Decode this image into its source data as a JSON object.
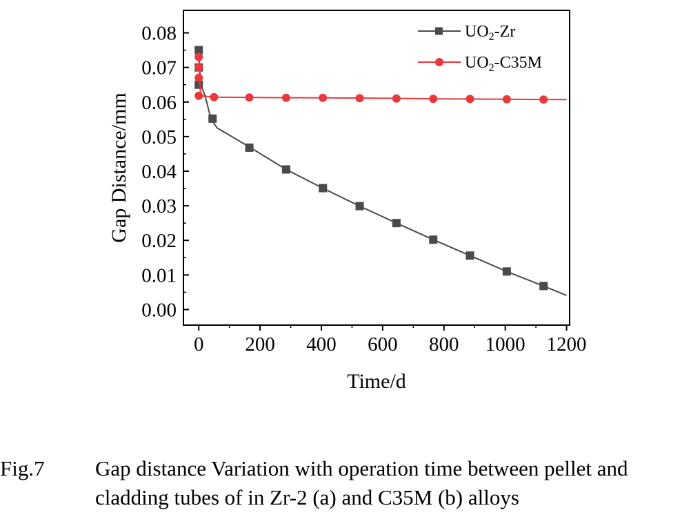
{
  "chart_data": {
    "type": "line",
    "xlabel": "Time/d",
    "ylabel": "Gap Distance/mm",
    "xlim": [
      -50,
      1210
    ],
    "ylim": [
      -0.0045,
      0.0865
    ],
    "x_ticks": [
      0,
      200,
      400,
      600,
      800,
      1000,
      1200
    ],
    "x_tick_labels": [
      "0",
      "200",
      "400",
      "600",
      "800",
      "1000",
      "1200"
    ],
    "y_ticks": [
      0,
      0.01,
      0.02,
      0.03,
      0.04,
      0.05,
      0.06,
      0.07,
      0.08
    ],
    "y_tick_labels": [
      "0.00",
      "0.01",
      "0.02",
      "0.03",
      "0.04",
      "0.05",
      "0.06",
      "0.07",
      "0.08"
    ],
    "grid": false,
    "legend_position": "top-right",
    "series": [
      {
        "name": "UO₂-Zr",
        "color": "#4a4a4a",
        "marker": "square",
        "line": [
          [
            0,
            0.075
          ],
          [
            3,
            0.07
          ],
          [
            6,
            0.065
          ],
          [
            20,
            0.062
          ],
          [
            40,
            0.055
          ],
          [
            60,
            0.0525
          ],
          [
            165,
            0.047
          ],
          [
            285,
            0.0405
          ],
          [
            405,
            0.0351
          ],
          [
            525,
            0.0299
          ],
          [
            645,
            0.025
          ],
          [
            765,
            0.0202
          ],
          [
            885,
            0.0156
          ],
          [
            1005,
            0.011
          ],
          [
            1125,
            0.0068
          ],
          [
            1200,
            0.0041
          ]
        ],
        "markers": [
          [
            0,
            0.075
          ],
          [
            0,
            0.07
          ],
          [
            0,
            0.065
          ],
          [
            45,
            0.0552
          ],
          [
            165,
            0.0468
          ],
          [
            285,
            0.0405
          ],
          [
            405,
            0.0351
          ],
          [
            525,
            0.0299
          ],
          [
            645,
            0.025
          ],
          [
            765,
            0.0202
          ],
          [
            885,
            0.0156
          ],
          [
            1005,
            0.011
          ],
          [
            1125,
            0.0068
          ]
        ]
      },
      {
        "name": "UO₂-C35M",
        "color": "#e8393c",
        "marker": "circle",
        "line": [
          [
            0,
            0.073
          ],
          [
            3,
            0.067
          ],
          [
            6,
            0.0618
          ],
          [
            50,
            0.0614
          ],
          [
            200,
            0.0613
          ],
          [
            400,
            0.0612
          ],
          [
            600,
            0.0611
          ],
          [
            800,
            0.0609
          ],
          [
            1000,
            0.0608
          ],
          [
            1200,
            0.0607
          ]
        ],
        "markers": [
          [
            0,
            0.073
          ],
          [
            0,
            0.07
          ],
          [
            0,
            0.067
          ],
          [
            0,
            0.0618
          ],
          [
            50,
            0.0614
          ],
          [
            165,
            0.0613
          ],
          [
            285,
            0.0612
          ],
          [
            405,
            0.0612
          ],
          [
            525,
            0.0611
          ],
          [
            645,
            0.061
          ],
          [
            765,
            0.0609
          ],
          [
            885,
            0.0609
          ],
          [
            1005,
            0.0608
          ],
          [
            1125,
            0.0607
          ]
        ]
      }
    ]
  },
  "legend": {
    "zr": {
      "pre": "UO",
      "sub": "2",
      "post": "-Zr"
    },
    "c35m": {
      "pre": "UO",
      "sub": "2",
      "post": "-C35M"
    }
  },
  "caption": {
    "label": "Fig.7",
    "line1": "Gap distance Variation with operation time between pellet and",
    "line2": "cladding tubes of in Zr-2 (a) and C35M (b) alloys"
  }
}
